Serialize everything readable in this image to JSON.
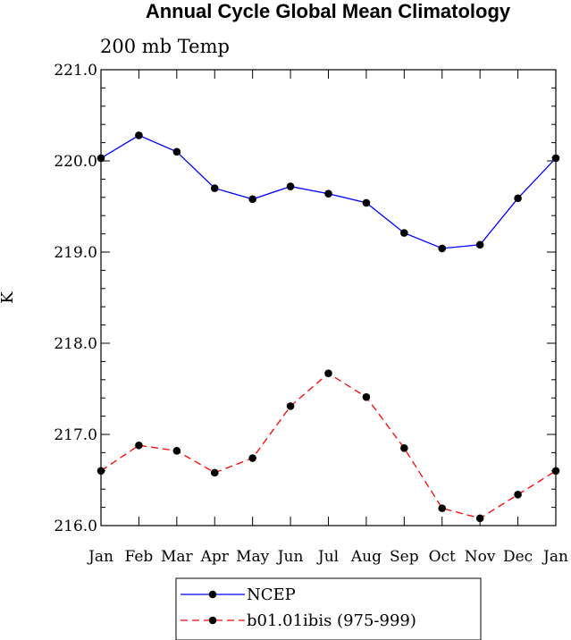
{
  "chart_data": {
    "type": "line",
    "title": "Annual Cycle Global Mean Climatology",
    "subtitle": "200 mb Temp",
    "xlabel": "",
    "ylabel": "K",
    "categories": [
      "Jan",
      "Feb",
      "Mar",
      "Apr",
      "May",
      "Jun",
      "Jul",
      "Aug",
      "Sep",
      "Oct",
      "Nov",
      "Dec",
      "Jan"
    ],
    "ylim": [
      216.0,
      221.0
    ],
    "yticks": [
      "216.0",
      "217.0",
      "218.0",
      "219.0",
      "220.0",
      "221.0"
    ],
    "grid": false,
    "legend_position": "bottom-center",
    "series": [
      {
        "name": "NCEP",
        "color": "#0000ff",
        "dash": "solid",
        "marker": "filled-circle",
        "values": [
          220.03,
          220.28,
          220.1,
          219.7,
          219.58,
          219.72,
          219.64,
          219.54,
          219.21,
          219.04,
          219.08,
          219.59,
          220.03
        ]
      },
      {
        "name": "b01.01ibis (975-999)",
        "color": "#ff0000",
        "dash": "dashed",
        "marker": "filled-circle",
        "values": [
          216.6,
          216.88,
          216.82,
          216.58,
          216.74,
          217.31,
          217.67,
          217.41,
          216.85,
          216.19,
          216.08,
          216.34,
          216.6
        ]
      }
    ]
  }
}
